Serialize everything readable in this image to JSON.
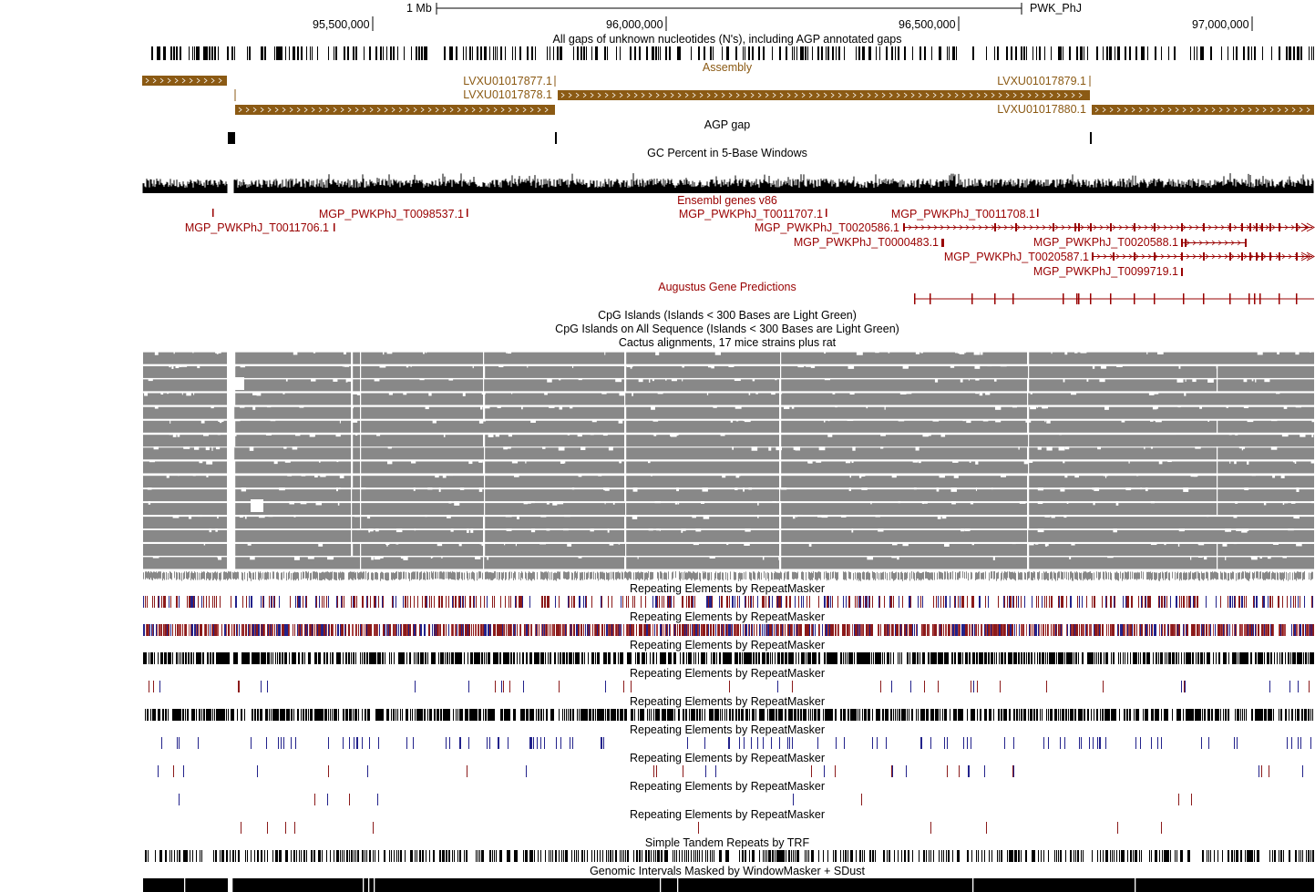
{
  "browser": {
    "scale_label": "1 Mb",
    "assembly_name": "PWK_PhJ",
    "ruler_ticks": [
      "95,500,000",
      "96,000,000",
      "96,500,000",
      "97,000,000"
    ]
  },
  "tracks": {
    "gaps": "All gaps of unknown nucleotides (N's), including AGP annotated gaps",
    "assembly": "Assembly",
    "agp_gap": "AGP gap",
    "gc_percent": "GC Percent in 5-Base Windows",
    "ensembl": "Ensembl genes v86",
    "augustus": "Augustus Gene Predictions",
    "cpg1": "CpG Islands (Islands < 300 Bases are Light Green)",
    "cpg2": "CpG Islands on All Sequence (Islands < 300 Bases are Light Green)",
    "cactus": "Cactus alignments, 17 mice strains plus rat",
    "rmsk": "Repeating Elements by RepeatMasker",
    "trf": "Simple Tandem Repeats by TRF",
    "windowmasker": "Genomic Intervals Masked by WindowMasker + SDust"
  },
  "assembly_contigs": [
    "LVXU01017877.1",
    "LVXU01017878.1",
    "LVXU01017879.1",
    "LVXU01017880.1"
  ],
  "ensembl_transcripts": [
    "MGP_PWKPhJ_T0098537.1",
    "MGP_PWKPhJ_T0011706.1",
    "MGP_PWKPhJ_T0011707.1",
    "MGP_PWKPhJ_T0011708.1",
    "MGP_PWKPhJ_T0020586.1",
    "MGP_PWKPhJ_T0000483.1",
    "MGP_PWKPhJ_T0020588.1",
    "MGP_PWKPhJ_T0020587.1",
    "MGP_PWKPhJ_T0099719.1"
  ],
  "colors": {
    "assembly": "#8B5A14",
    "ensembl": "#990000",
    "cactus": "#888888",
    "rmsk_red": "#8B1A1A",
    "rmsk_blue": "#22228B"
  }
}
